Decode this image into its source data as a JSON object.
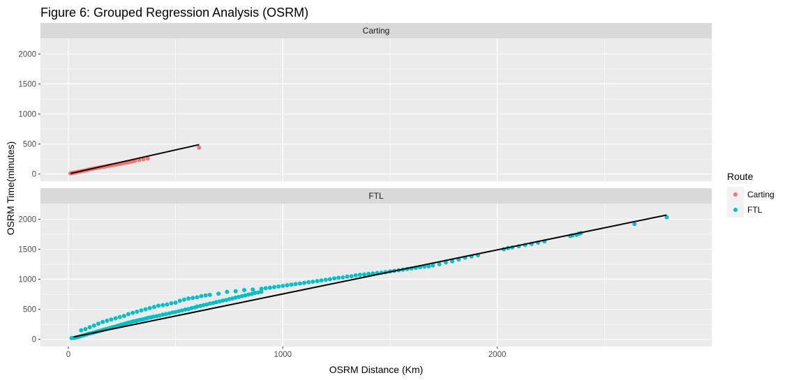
{
  "chart_data": {
    "type": "scatter",
    "title": "Figure 6: Grouped Regression Analysis (OSRM)",
    "xlabel": "OSRM Distance (Km)",
    "ylabel": "OSRM Time(minutes)",
    "xlim": [
      -130,
      3000
    ],
    "ylim": [
      -120,
      2260
    ],
    "x_ticks": [
      0,
      1000,
      2000
    ],
    "y_ticks": [
      0,
      500,
      1000,
      1500,
      2000
    ],
    "grid": true,
    "legend": {
      "title": "Route",
      "position": "right",
      "entries": [
        {
          "label": "Carting",
          "color": "#F8766D"
        },
        {
          "label": "FTL",
          "color": "#00BFC4"
        }
      ]
    },
    "facets": [
      {
        "strip": "Carting",
        "color": "#F8766D",
        "points": [
          [
            10,
            12
          ],
          [
            15,
            14
          ],
          [
            20,
            18
          ],
          [
            25,
            22
          ],
          [
            30,
            25
          ],
          [
            35,
            27
          ],
          [
            40,
            32
          ],
          [
            45,
            34
          ],
          [
            50,
            38
          ],
          [
            55,
            42
          ],
          [
            60,
            48
          ],
          [
            65,
            52
          ],
          [
            70,
            54
          ],
          [
            75,
            58
          ],
          [
            80,
            60
          ],
          [
            85,
            64
          ],
          [
            90,
            70
          ],
          [
            95,
            76
          ],
          [
            100,
            80
          ],
          [
            110,
            86
          ],
          [
            120,
            92
          ],
          [
            130,
            100
          ],
          [
            140,
            106
          ],
          [
            150,
            112
          ],
          [
            160,
            118
          ],
          [
            170,
            124
          ],
          [
            180,
            132
          ],
          [
            190,
            138
          ],
          [
            200,
            146
          ],
          [
            210,
            150
          ],
          [
            220,
            158
          ],
          [
            230,
            164
          ],
          [
            240,
            170
          ],
          [
            250,
            176
          ],
          [
            260,
            184
          ],
          [
            270,
            190
          ],
          [
            280,
            196
          ],
          [
            290,
            204
          ],
          [
            300,
            212
          ],
          [
            310,
            220
          ],
          [
            330,
            234
          ],
          [
            350,
            246
          ],
          [
            370,
            258
          ],
          [
            610,
            440
          ]
        ],
        "fit": {
          "x": [
            10,
            610
          ],
          "y": [
            10,
            490
          ]
        }
      },
      {
        "strip": "FTL",
        "color": "#00BFC4",
        "points": [
          [
            15,
            20
          ],
          [
            25,
            22
          ],
          [
            35,
            30
          ],
          [
            45,
            38
          ],
          [
            55,
            50
          ],
          [
            65,
            60
          ],
          [
            75,
            70
          ],
          [
            85,
            80
          ],
          [
            95,
            95
          ],
          [
            105,
            100
          ],
          [
            115,
            110
          ],
          [
            125,
            120
          ],
          [
            135,
            130
          ],
          [
            145,
            140
          ],
          [
            155,
            150
          ],
          [
            165,
            160
          ],
          [
            175,
            170
          ],
          [
            185,
            180
          ],
          [
            195,
            190
          ],
          [
            205,
            200
          ],
          [
            215,
            210
          ],
          [
            225,
            220
          ],
          [
            235,
            230
          ],
          [
            245,
            240
          ],
          [
            255,
            250
          ],
          [
            265,
            260
          ],
          [
            275,
            270
          ],
          [
            285,
            280
          ],
          [
            295,
            290
          ],
          [
            305,
            300
          ],
          [
            315,
            305
          ],
          [
            325,
            315
          ],
          [
            335,
            325
          ],
          [
            345,
            330
          ],
          [
            355,
            340
          ],
          [
            365,
            350
          ],
          [
            375,
            360
          ],
          [
            385,
            365
          ],
          [
            395,
            375
          ],
          [
            410,
            385
          ],
          [
            425,
            395
          ],
          [
            440,
            410
          ],
          [
            455,
            420
          ],
          [
            470,
            430
          ],
          [
            485,
            445
          ],
          [
            500,
            455
          ],
          [
            515,
            470
          ],
          [
            530,
            480
          ],
          [
            545,
            495
          ],
          [
            560,
            505
          ],
          [
            575,
            520
          ],
          [
            590,
            530
          ],
          [
            600,
            545
          ],
          [
            615,
            555
          ],
          [
            630,
            570
          ],
          [
            645,
            580
          ],
          [
            660,
            595
          ],
          [
            675,
            605
          ],
          [
            690,
            620
          ],
          [
            705,
            630
          ],
          [
            720,
            645
          ],
          [
            735,
            655
          ],
          [
            750,
            670
          ],
          [
            765,
            680
          ],
          [
            780,
            695
          ],
          [
            795,
            705
          ],
          [
            810,
            720
          ],
          [
            825,
            730
          ],
          [
            840,
            745
          ],
          [
            855,
            755
          ],
          [
            870,
            770
          ],
          [
            885,
            780
          ],
          [
            900,
            790
          ],
          [
            60,
            150
          ],
          [
            80,
            170
          ],
          [
            100,
            200
          ],
          [
            120,
            230
          ],
          [
            140,
            260
          ],
          [
            160,
            290
          ],
          [
            180,
            310
          ],
          [
            200,
            330
          ],
          [
            220,
            350
          ],
          [
            240,
            370
          ],
          [
            260,
            390
          ],
          [
            280,
            420
          ],
          [
            300,
            440
          ],
          [
            320,
            460
          ],
          [
            340,
            480
          ],
          [
            360,
            500
          ],
          [
            380,
            520
          ],
          [
            400,
            540
          ],
          [
            420,
            560
          ],
          [
            440,
            570
          ],
          [
            460,
            580
          ],
          [
            480,
            600
          ],
          [
            500,
            610
          ],
          [
            520,
            640
          ],
          [
            540,
            660
          ],
          [
            560,
            680
          ],
          [
            580,
            690
          ],
          [
            600,
            700
          ],
          [
            620,
            720
          ],
          [
            640,
            730
          ],
          [
            660,
            740
          ],
          [
            700,
            760
          ],
          [
            740,
            790
          ],
          [
            780,
            800
          ],
          [
            820,
            820
          ],
          [
            860,
            830
          ],
          [
            900,
            840
          ],
          [
            920,
            850
          ],
          [
            940,
            860
          ],
          [
            960,
            870
          ],
          [
            980,
            880
          ],
          [
            1000,
            890
          ],
          [
            1020,
            900
          ],
          [
            1040,
            910
          ],
          [
            1060,
            920
          ],
          [
            1080,
            930
          ],
          [
            1100,
            940
          ],
          [
            1120,
            950
          ],
          [
            1140,
            960
          ],
          [
            1160,
            970
          ],
          [
            1180,
            980
          ],
          [
            1200,
            990
          ],
          [
            1220,
            1000
          ],
          [
            1240,
            1015
          ],
          [
            1260,
            1025
          ],
          [
            1280,
            1030
          ],
          [
            1300,
            1045
          ],
          [
            1320,
            1050
          ],
          [
            1340,
            1065
          ],
          [
            1360,
            1075
          ],
          [
            1380,
            1080
          ],
          [
            1400,
            1090
          ],
          [
            1420,
            1095
          ],
          [
            1440,
            1105
          ],
          [
            1460,
            1110
          ],
          [
            1480,
            1120
          ],
          [
            1500,
            1130
          ],
          [
            1520,
            1140
          ],
          [
            1540,
            1150
          ],
          [
            1560,
            1160
          ],
          [
            1580,
            1170
          ],
          [
            1600,
            1180
          ],
          [
            1620,
            1190
          ],
          [
            1640,
            1200
          ],
          [
            1660,
            1210
          ],
          [
            1680,
            1215
          ],
          [
            1700,
            1230
          ],
          [
            1730,
            1250
          ],
          [
            1760,
            1280
          ],
          [
            1790,
            1300
          ],
          [
            1820,
            1330
          ],
          [
            1850,
            1360
          ],
          [
            1880,
            1380
          ],
          [
            1910,
            1400
          ],
          [
            2030,
            1500
          ],
          [
            2050,
            1520
          ],
          [
            2070,
            1530
          ],
          [
            2100,
            1550
          ],
          [
            2130,
            1570
          ],
          [
            2160,
            1590
          ],
          [
            2190,
            1610
          ],
          [
            2220,
            1630
          ],
          [
            2340,
            1720
          ],
          [
            2350,
            1730
          ],
          [
            2370,
            1740
          ],
          [
            2380,
            1760
          ],
          [
            2390,
            1770
          ],
          [
            2640,
            1920
          ],
          [
            2790,
            2030
          ]
        ],
        "fit": {
          "x": [
            25,
            2790
          ],
          "y": [
            40,
            2070
          ]
        }
      }
    ]
  }
}
